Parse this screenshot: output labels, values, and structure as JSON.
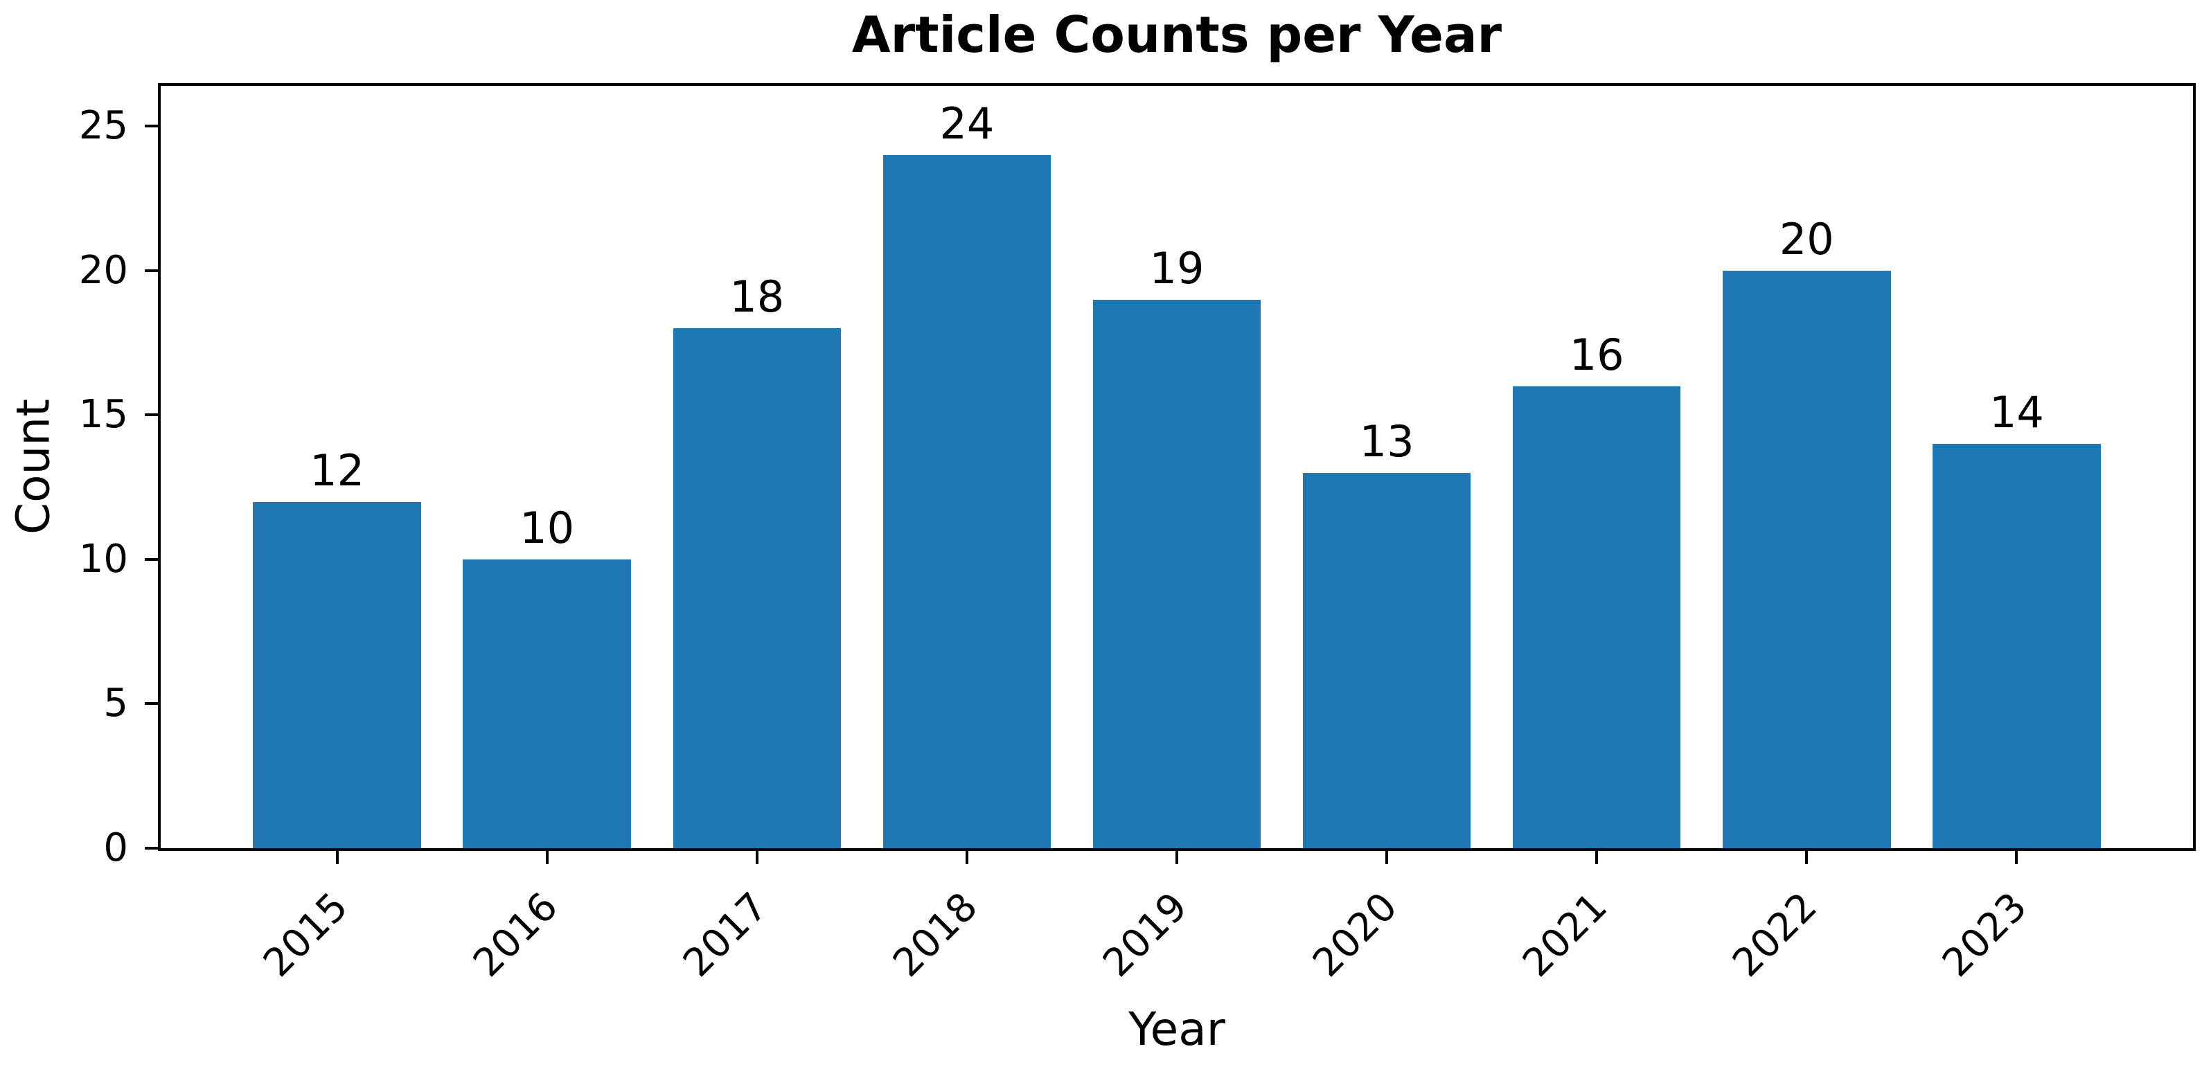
{
  "chart_data": {
    "type": "bar",
    "title": "Article Counts per Year",
    "xlabel": "Year",
    "ylabel": "Count",
    "categories": [
      "2015",
      "2016",
      "2017",
      "2018",
      "2019",
      "2020",
      "2021",
      "2022",
      "2023"
    ],
    "values": [
      12,
      10,
      18,
      24,
      19,
      13,
      16,
      20,
      14
    ],
    "yticks": [
      0,
      5,
      10,
      15,
      20,
      25
    ],
    "ylim": [
      0,
      26.4
    ],
    "bar_color": "#1f77b4",
    "value_labels_shown": true,
    "x_tick_rotation_deg": 45,
    "grid": false,
    "legend": false,
    "spine_color": "#000000",
    "background_color": "#ffffff"
  }
}
